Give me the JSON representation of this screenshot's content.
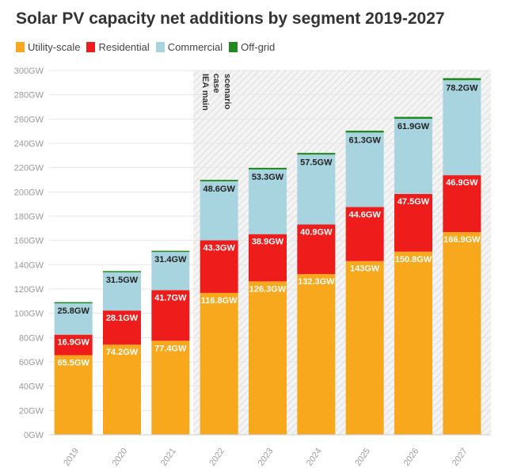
{
  "chart_data": {
    "type": "bar",
    "stacked": true,
    "title": "Solar PV capacity net additions by segment 2019-2027",
    "categories": [
      "2019",
      "2020",
      "2021",
      "2022",
      "2023",
      "2024",
      "2025",
      "2026",
      "2027"
    ],
    "series": [
      {
        "name": "Utility-scale",
        "color": "#f8a81c",
        "values": [
          65.5,
          74.2,
          77.4,
          116.8,
          126.3,
          132.3,
          143,
          150.8,
          166.9
        ],
        "labels": [
          "65.5GW",
          "74.2GW",
          "77.4GW",
          "116.8GW",
          "126.3GW",
          "132.3GW",
          "143GW",
          "150.8GW",
          "166.9GW"
        ]
      },
      {
        "name": "Residential",
        "color": "#ef1c1c",
        "values": [
          16.9,
          28.1,
          41.7,
          43.3,
          38.9,
          40.9,
          44.6,
          47.5,
          46.9
        ],
        "labels": [
          "16.9GW",
          "28.1GW",
          "41.7GW",
          "43.3GW",
          "38.9GW",
          "40.9GW",
          "44.6GW",
          "47.5GW",
          "46.9GW"
        ]
      },
      {
        "name": "Commercial",
        "color": "#a8d4e0",
        "values": [
          25.8,
          31.5,
          31.4,
          48.6,
          53.3,
          57.5,
          61.3,
          61.9,
          78.2
        ],
        "labels": [
          "25.8GW",
          "31.5GW",
          "31.4GW",
          "48.6GW",
          "53.3GW",
          "57.5GW",
          "61.3GW",
          "61.9GW",
          "78.2GW"
        ]
      },
      {
        "name": "Off-grid",
        "color": "#1f8a1f",
        "values": [
          1,
          1,
          1,
          1.2,
          1.3,
          1.4,
          1.5,
          1.6,
          1.7
        ]
      }
    ],
    "ylim": [
      0,
      300
    ],
    "y_ticks": [
      "0GW",
      "20GW",
      "40GW",
      "60GW",
      "80GW",
      "100GW",
      "120GW",
      "140GW",
      "160GW",
      "180GW",
      "200GW",
      "220GW",
      "240GW",
      "260GW",
      "280GW",
      "300GW"
    ],
    "y_tick_values": [
      0,
      20,
      40,
      60,
      80,
      100,
      120,
      140,
      160,
      180,
      200,
      220,
      240,
      260,
      280,
      300
    ],
    "grid": true,
    "legend": "top-left",
    "projection_region": {
      "from_category": "2022",
      "label_lines": [
        "IEA main",
        "case",
        "scenario"
      ]
    }
  }
}
